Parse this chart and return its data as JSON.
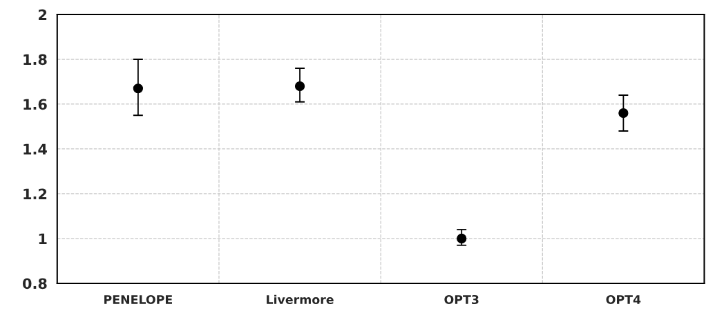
{
  "chart_data": {
    "type": "scatter",
    "categories": [
      "PENELOPE",
      "Livermore",
      "OPT3",
      "OPT4"
    ],
    "series": [
      {
        "color": "#000000",
        "values": [
          1.67,
          1.68,
          1.0,
          1.56
        ],
        "errors": [
          [
            1.55,
            1.8
          ],
          [
            1.61,
            1.76
          ],
          [
            0.97,
            1.04
          ],
          [
            1.48,
            1.64
          ]
        ]
      }
    ],
    "ylim": [
      0.8,
      2
    ],
    "yticks": [
      0.8,
      1,
      1.2,
      1.4,
      1.6,
      1.8,
      2
    ],
    "grid": true,
    "marker": "circle",
    "legend": false
  }
}
